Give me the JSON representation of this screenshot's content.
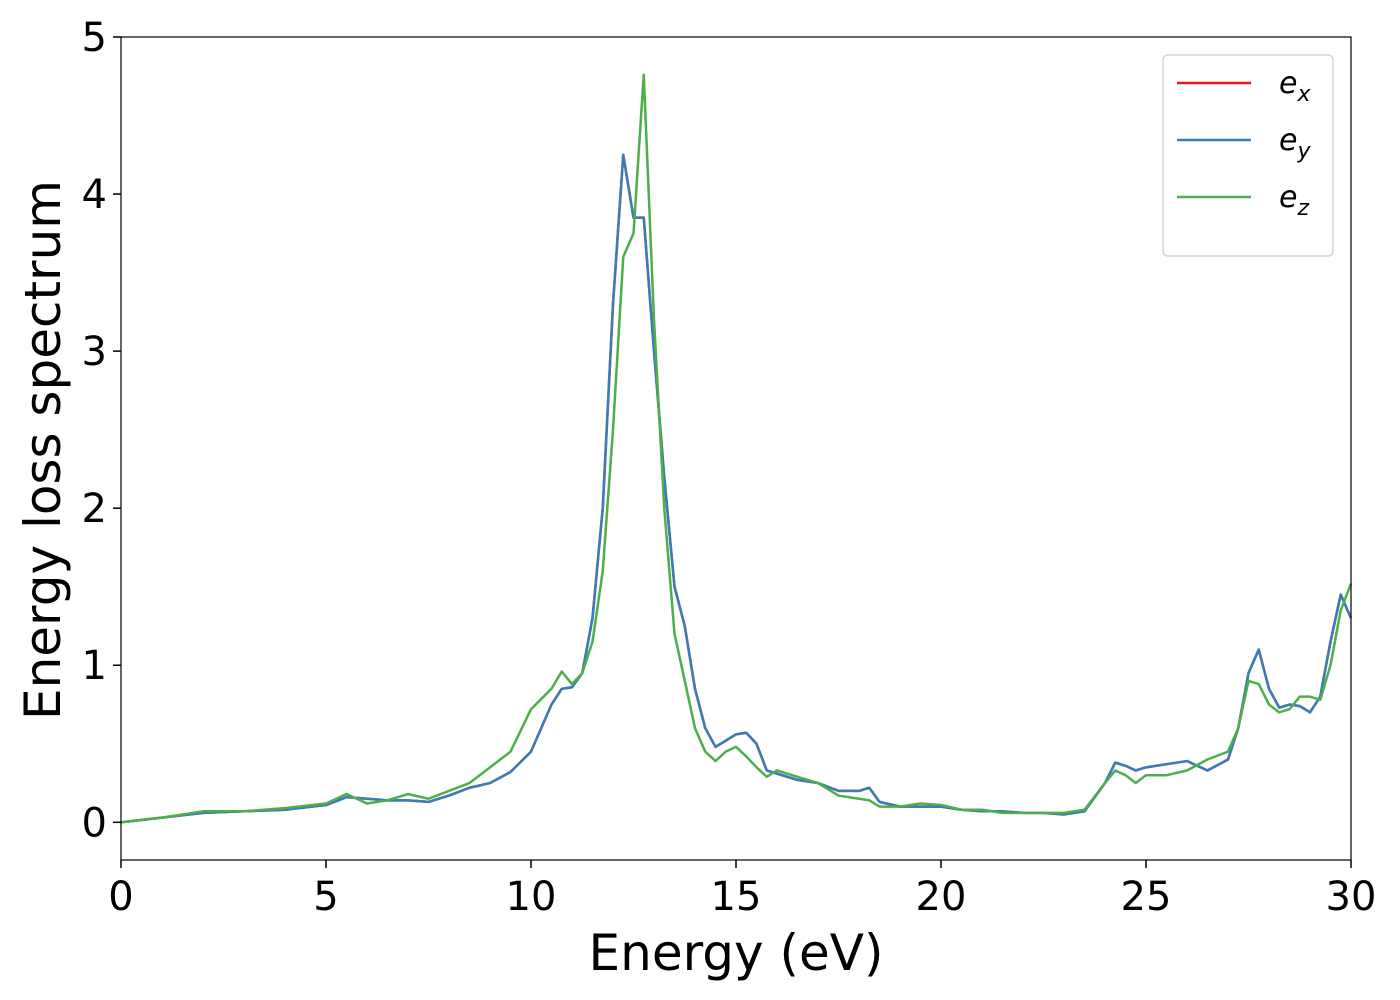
{
  "chart_data": {
    "type": "line",
    "xlabel": "Energy (eV)",
    "ylabel": "Energy loss spectrum",
    "x": [
      0,
      1,
      2,
      3,
      4,
      5,
      5.5,
      6,
      6.5,
      7,
      7.5,
      8,
      8.5,
      9,
      9.5,
      10,
      10.5,
      10.75,
      11,
      11.25,
      11.5,
      11.75,
      12,
      12.25,
      12.5,
      12.75,
      13,
      13.25,
      13.5,
      13.75,
      14,
      14.25,
      14.5,
      14.75,
      15,
      15.25,
      15.5,
      15.75,
      16,
      16.5,
      17,
      17.5,
      18,
      18.25,
      18.5,
      19,
      19.5,
      20,
      20.5,
      21,
      21.5,
      22,
      22.5,
      23,
      23.5,
      24,
      24.25,
      24.5,
      24.75,
      25,
      25.5,
      26,
      26.5,
      27,
      27.25,
      27.5,
      27.75,
      28,
      28.25,
      28.5,
      28.75,
      29,
      29.25,
      29.5,
      29.75,
      30
    ],
    "series": [
      {
        "name": "e_x",
        "color": "#e41a1c",
        "values": [
          0,
          0.03,
          0.06,
          0.07,
          0.08,
          0.11,
          0.16,
          0.15,
          0.14,
          0.14,
          0.13,
          0.17,
          0.22,
          0.25,
          0.32,
          0.45,
          0.75,
          0.85,
          0.86,
          0.95,
          1.3,
          2.0,
          3.3,
          4.25,
          3.85,
          3.85,
          3.0,
          2.2,
          1.5,
          1.25,
          0.85,
          0.6,
          0.48,
          0.52,
          0.56,
          0.57,
          0.5,
          0.33,
          0.31,
          0.27,
          0.25,
          0.2,
          0.2,
          0.22,
          0.13,
          0.1,
          0.1,
          0.1,
          0.08,
          0.07,
          0.07,
          0.06,
          0.06,
          0.05,
          0.07,
          0.25,
          0.38,
          0.36,
          0.33,
          0.35,
          0.37,
          0.39,
          0.33,
          0.4,
          0.6,
          0.95,
          1.1,
          0.85,
          0.73,
          0.75,
          0.74,
          0.7,
          0.8,
          1.15,
          1.45,
          1.3
        ]
      },
      {
        "name": "e_y",
        "color": "#377eb8",
        "values": [
          0,
          0.03,
          0.06,
          0.07,
          0.08,
          0.11,
          0.16,
          0.15,
          0.14,
          0.14,
          0.13,
          0.17,
          0.22,
          0.25,
          0.32,
          0.45,
          0.75,
          0.85,
          0.86,
          0.95,
          1.3,
          2.0,
          3.3,
          4.25,
          3.85,
          3.85,
          3.0,
          2.2,
          1.5,
          1.25,
          0.85,
          0.6,
          0.48,
          0.52,
          0.56,
          0.57,
          0.5,
          0.33,
          0.31,
          0.27,
          0.25,
          0.2,
          0.2,
          0.22,
          0.13,
          0.1,
          0.1,
          0.1,
          0.08,
          0.07,
          0.07,
          0.06,
          0.06,
          0.05,
          0.07,
          0.25,
          0.38,
          0.36,
          0.33,
          0.35,
          0.37,
          0.39,
          0.33,
          0.4,
          0.6,
          0.95,
          1.1,
          0.85,
          0.73,
          0.75,
          0.74,
          0.7,
          0.8,
          1.15,
          1.45,
          1.3
        ]
      },
      {
        "name": "e_z",
        "color": "#4daf4a",
        "values": [
          0,
          0.03,
          0.07,
          0.07,
          0.09,
          0.12,
          0.18,
          0.12,
          0.14,
          0.18,
          0.15,
          0.2,
          0.25,
          0.35,
          0.45,
          0.72,
          0.85,
          0.96,
          0.88,
          0.95,
          1.15,
          1.6,
          2.5,
          3.6,
          3.75,
          4.76,
          3.2,
          2.0,
          1.2,
          0.9,
          0.6,
          0.45,
          0.39,
          0.45,
          0.48,
          0.42,
          0.35,
          0.29,
          0.33,
          0.29,
          0.25,
          0.17,
          0.15,
          0.14,
          0.1,
          0.1,
          0.12,
          0.11,
          0.08,
          0.08,
          0.06,
          0.06,
          0.06,
          0.06,
          0.08,
          0.25,
          0.33,
          0.3,
          0.25,
          0.3,
          0.3,
          0.33,
          0.4,
          0.45,
          0.6,
          0.9,
          0.88,
          0.75,
          0.7,
          0.72,
          0.8,
          0.8,
          0.78,
          1.0,
          1.35,
          1.52
        ]
      }
    ],
    "xlim": [
      0,
      30
    ],
    "xticks": [
      0,
      5,
      10,
      15,
      20,
      25,
      30
    ],
    "ylim": [
      -0.24,
      5
    ],
    "yticks": [
      0,
      1,
      2,
      3,
      4,
      5
    ],
    "legend": "upper right"
  }
}
